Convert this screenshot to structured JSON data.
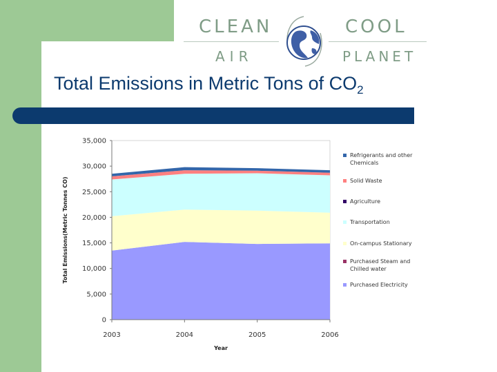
{
  "logo": {
    "word_clean": "CLEAN",
    "word_cool": "COOL",
    "word_air": "AIR",
    "word_planet": "PLANET",
    "globe_icon": "globe-icon"
  },
  "slide": {
    "title_main": "Total Emissions in Metric Tons of CO",
    "title_sub": "2"
  },
  "colors": {
    "accent_green": "#9dc995",
    "title_blue": "#0c3a6e",
    "logo_text": "#7f9c86"
  },
  "chart_data": {
    "type": "area",
    "stacked": true,
    "x": [
      "2003",
      "2004",
      "2005",
      "2006"
    ],
    "xlabel": "Year",
    "ylabel": "Total Emissions(Metric Tonnes CO)",
    "ylim": [
      0,
      35000
    ],
    "yticks": [
      "0",
      "5,000",
      "10,000",
      "15,000",
      "20,000",
      "25,000",
      "30,000",
      "35,000"
    ],
    "grid": false,
    "legend_position": "right",
    "series": [
      {
        "name": "Purchased Electricity",
        "color": "#9999ff",
        "values": [
          13500,
          15200,
          14800,
          14900
        ]
      },
      {
        "name": "Purchased Steam and Chilled water",
        "color": "#993366",
        "values": [
          0,
          0,
          0,
          0
        ]
      },
      {
        "name": "On-campus Stationary",
        "color": "#ffffcc",
        "values": [
          6700,
          6300,
          6500,
          6000
        ]
      },
      {
        "name": "Transportation",
        "color": "#ccffff",
        "values": [
          7200,
          7000,
          7300,
          7300
        ]
      },
      {
        "name": "Agriculture",
        "color": "#330066",
        "values": [
          0,
          0,
          0,
          0
        ]
      },
      {
        "name": "Solid Waste",
        "color": "#ff8080",
        "values": [
          600,
          700,
          500,
          500
        ]
      },
      {
        "name": "Refrigerants and other Chemicals",
        "color": "#3366aa",
        "values": [
          500,
          600,
          500,
          500
        ]
      }
    ]
  }
}
